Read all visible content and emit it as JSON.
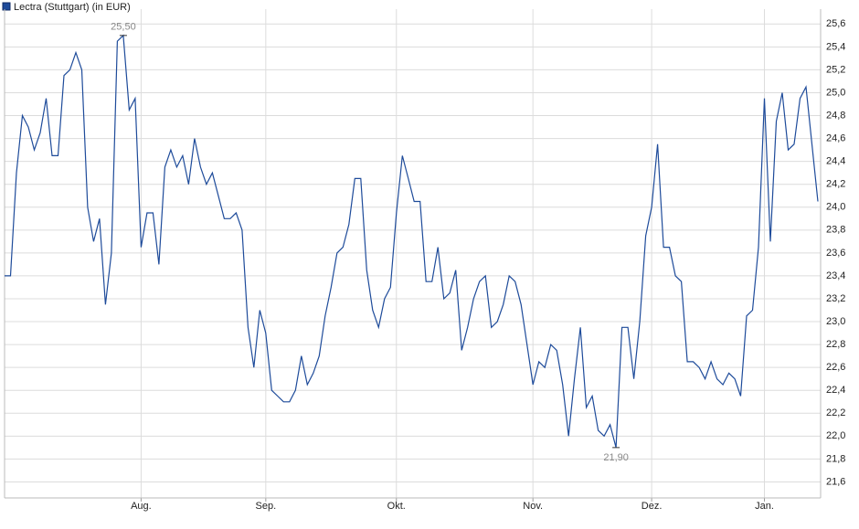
{
  "chart_data": {
    "type": "line",
    "title": "Lectra (Stuttgart) (in EUR)",
    "series": [
      {
        "name": "Lectra (Stuttgart) (in EUR)",
        "color": "#1e4b9a",
        "values": [
          23.4,
          23.4,
          24.3,
          24.8,
          24.7,
          24.5,
          24.65,
          24.95,
          24.45,
          24.45,
          25.15,
          25.2,
          25.35,
          25.2,
          24.0,
          23.7,
          23.9,
          23.15,
          23.6,
          25.45,
          25.5,
          24.85,
          24.95,
          23.65,
          23.95,
          23.95,
          23.5,
          24.35,
          24.5,
          24.35,
          24.45,
          24.2,
          24.6,
          24.35,
          24.2,
          24.3,
          24.1,
          23.9,
          23.9,
          23.95,
          23.8,
          22.95,
          22.6,
          23.1,
          22.9,
          22.4,
          22.35,
          22.3,
          22.3,
          22.4,
          22.7,
          22.45,
          22.55,
          22.7,
          23.05,
          23.3,
          23.6,
          23.65,
          23.85,
          24.25,
          24.25,
          23.45,
          23.1,
          22.95,
          23.2,
          23.3,
          23.95,
          24.45,
          24.25,
          24.05,
          24.05,
          23.35,
          23.35,
          23.65,
          23.2,
          23.25,
          23.45,
          22.75,
          22.95,
          23.2,
          23.35,
          23.4,
          22.95,
          23.0,
          23.15,
          23.4,
          23.35,
          23.15,
          22.8,
          22.45,
          22.65,
          22.6,
          22.8,
          22.75,
          22.45,
          22.0,
          22.5,
          22.95,
          22.25,
          22.35,
          22.05,
          22.0,
          22.1,
          21.9,
          22.95,
          22.95,
          22.5,
          23.0,
          23.75,
          24.0,
          24.55,
          23.65,
          23.65,
          23.4,
          23.35,
          22.65,
          22.65,
          22.6,
          22.5,
          22.65,
          22.5,
          22.45,
          22.55,
          22.5,
          22.35,
          23.05,
          23.1,
          23.65,
          24.95,
          23.7,
          24.75,
          25.0,
          24.5,
          24.55,
          24.95,
          25.05,
          24.55,
          24.05
        ]
      }
    ],
    "annotations": [
      {
        "label": "25,50",
        "value": 25.5
      },
      {
        "label": "21,90",
        "value": 21.9
      }
    ],
    "xlim": [
      0,
      137
    ],
    "xticks": [
      {
        "value": 23,
        "label": "Aug."
      },
      {
        "value": 44,
        "label": "Sep."
      },
      {
        "value": 66,
        "label": "Okt."
      },
      {
        "value": 89,
        "label": "Nov."
      },
      {
        "value": 109,
        "label": "Dez."
      },
      {
        "value": 128,
        "label": "Jan."
      }
    ],
    "ylim": [
      21.46,
      25.73
    ],
    "yticks": [
      {
        "value": 21.6,
        "label": "21,6"
      },
      {
        "value": 21.8,
        "label": "21,8"
      },
      {
        "value": 22.0,
        "label": "22,0"
      },
      {
        "value": 22.2,
        "label": "22,2"
      },
      {
        "value": 22.4,
        "label": "22,4"
      },
      {
        "value": 22.6,
        "label": "22,6"
      },
      {
        "value": 22.8,
        "label": "22,8"
      },
      {
        "value": 23.0,
        "label": "23,0"
      },
      {
        "value": 23.2,
        "label": "23,2"
      },
      {
        "value": 23.4,
        "label": "23,4"
      },
      {
        "value": 23.6,
        "label": "23,6"
      },
      {
        "value": 23.8,
        "label": "23,8"
      },
      {
        "value": 24.0,
        "label": "24,0"
      },
      {
        "value": 24.2,
        "label": "24,2"
      },
      {
        "value": 24.4,
        "label": "24,4"
      },
      {
        "value": 24.6,
        "label": "24,6"
      },
      {
        "value": 24.8,
        "label": "24,8"
      },
      {
        "value": 25.0,
        "label": "25,0"
      },
      {
        "value": 25.2,
        "label": "25,2"
      },
      {
        "value": 25.4,
        "label": "25,4"
      },
      {
        "value": 25.6,
        "label": "25,6"
      }
    ],
    "grid": true
  }
}
